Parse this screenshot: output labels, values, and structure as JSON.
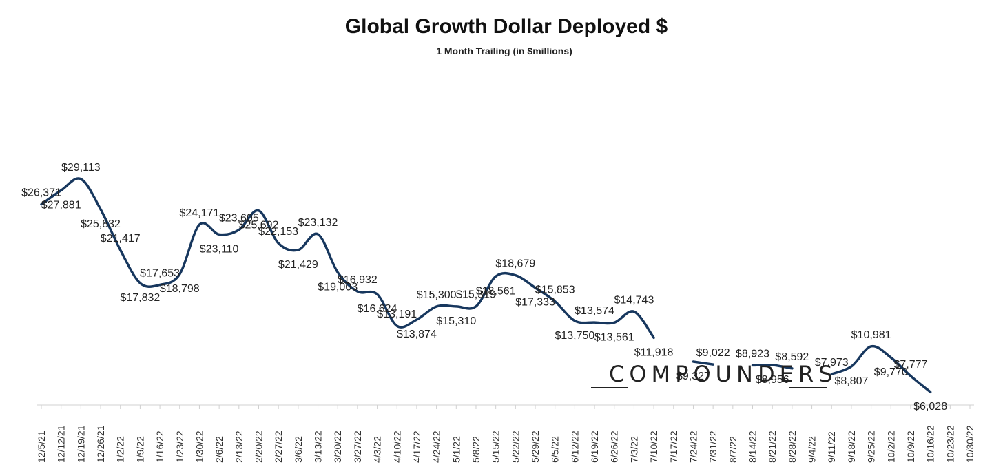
{
  "chart_data": {
    "type": "line",
    "title": "Global Growth Dollar Deployed $",
    "subtitle": "1 Month Trailing (in $millions)",
    "xlabel": "",
    "ylabel": "",
    "ylim": [
      0,
      33000
    ],
    "grid": false,
    "categories": [
      "12/5/21",
      "12/12/21",
      "12/19/21",
      "12/26/21",
      "1/2/22",
      "1/9/22",
      "1/16/22",
      "1/23/22",
      "1/30/22",
      "2/6/22",
      "2/13/22",
      "2/20/22",
      "2/27/22",
      "3/6/22",
      "3/13/22",
      "3/20/22",
      "3/27/22",
      "4/3/22",
      "4/10/22",
      "4/17/22",
      "4/24/22",
      "5/1/22",
      "5/8/22",
      "5/15/22",
      "5/22/22",
      "5/29/22",
      "6/5/22",
      "6/12/22",
      "6/19/22",
      "6/26/22",
      "7/3/22",
      "7/10/22",
      "7/17/22",
      "7/24/22",
      "7/31/22",
      "8/7/22",
      "8/14/22",
      "8/21/22",
      "8/28/22",
      "9/4/22",
      "9/11/22",
      "9/18/22",
      "9/25/22",
      "10/2/22",
      "10/9/22",
      "10/16/22",
      "10/23/22",
      "10/30/22"
    ],
    "series": [
      {
        "color": "#17375e",
        "values": [
          26371,
          27881,
          29113,
          25832,
          21417,
          17832,
          17653,
          18798,
          24171,
          23110,
          23605,
          25692,
          22153,
          21429,
          23132,
          19003,
          16932,
          16624,
          13191,
          13874,
          15300,
          15310,
          15319,
          18561,
          18679,
          17333,
          15853,
          13750,
          13574,
          13561,
          14743,
          11918,
          null,
          9327,
          9022,
          null,
          8923,
          8956,
          8592,
          null,
          7973,
          8807,
          10981,
          9770,
          7777,
          6028,
          null,
          null
        ],
        "data_labels": [
          "$26,371",
          "$27,881",
          "$29,113",
          "$25,832",
          "$21,417",
          "$17,832",
          "$17,653",
          "$18,798",
          "$24,171",
          "$23,110",
          "$23,605",
          "$25,692",
          "$22,153",
          "$21,429",
          "$23,132",
          "$19,003",
          "$16,932",
          "$16,624",
          "$13,191",
          "$13,874",
          "$15,300",
          "$15,310",
          "$15,319",
          "$18,561",
          "$18,679",
          "$17,333",
          "$15,853",
          "$13,750",
          "$13,574",
          "$13,561",
          "$14,743",
          "$11,918",
          "",
          "$9,327",
          "$9,022",
          "",
          "$8,923",
          "$8,956",
          "$8,592",
          "",
          "$7,973",
          "$8,807",
          "$10,981",
          "$9,770",
          "$7,777",
          "$6,028",
          "",
          ""
        ]
      }
    ]
  },
  "brand": {
    "name": "COMPOUNDERS"
  }
}
